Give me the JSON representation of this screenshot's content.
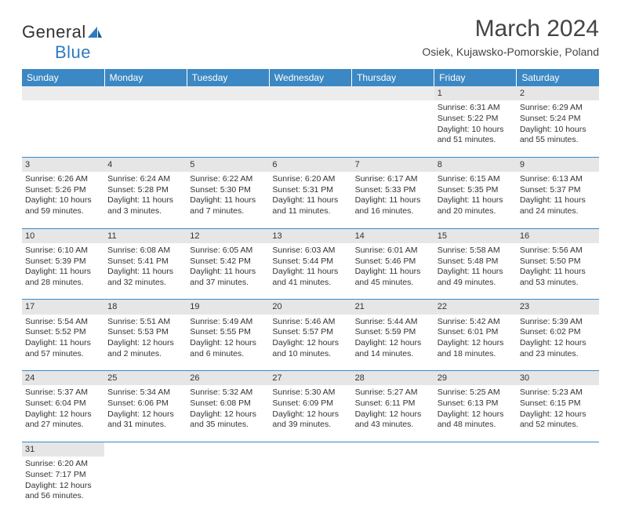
{
  "brand": {
    "part1": "General",
    "part2": "Blue"
  },
  "title": "March 2024",
  "location": "Osiek, Kujawsko-Pomorskie, Poland",
  "colors": {
    "headerBg": "#3b88c4",
    "dayShade": "#e6e6e6",
    "border": "#3b88c4"
  },
  "weekdays": [
    "Sunday",
    "Monday",
    "Tuesday",
    "Wednesday",
    "Thursday",
    "Friday",
    "Saturday"
  ],
  "weeks": [
    [
      null,
      null,
      null,
      null,
      null,
      {
        "n": "1",
        "sr": "Sunrise: 6:31 AM",
        "ss": "Sunset: 5:22 PM",
        "d1": "Daylight: 10 hours",
        "d2": "and 51 minutes."
      },
      {
        "n": "2",
        "sr": "Sunrise: 6:29 AM",
        "ss": "Sunset: 5:24 PM",
        "d1": "Daylight: 10 hours",
        "d2": "and 55 minutes."
      }
    ],
    [
      {
        "n": "3",
        "sr": "Sunrise: 6:26 AM",
        "ss": "Sunset: 5:26 PM",
        "d1": "Daylight: 10 hours",
        "d2": "and 59 minutes."
      },
      {
        "n": "4",
        "sr": "Sunrise: 6:24 AM",
        "ss": "Sunset: 5:28 PM",
        "d1": "Daylight: 11 hours",
        "d2": "and 3 minutes."
      },
      {
        "n": "5",
        "sr": "Sunrise: 6:22 AM",
        "ss": "Sunset: 5:30 PM",
        "d1": "Daylight: 11 hours",
        "d2": "and 7 minutes."
      },
      {
        "n": "6",
        "sr": "Sunrise: 6:20 AM",
        "ss": "Sunset: 5:31 PM",
        "d1": "Daylight: 11 hours",
        "d2": "and 11 minutes."
      },
      {
        "n": "7",
        "sr": "Sunrise: 6:17 AM",
        "ss": "Sunset: 5:33 PM",
        "d1": "Daylight: 11 hours",
        "d2": "and 16 minutes."
      },
      {
        "n": "8",
        "sr": "Sunrise: 6:15 AM",
        "ss": "Sunset: 5:35 PM",
        "d1": "Daylight: 11 hours",
        "d2": "and 20 minutes."
      },
      {
        "n": "9",
        "sr": "Sunrise: 6:13 AM",
        "ss": "Sunset: 5:37 PM",
        "d1": "Daylight: 11 hours",
        "d2": "and 24 minutes."
      }
    ],
    [
      {
        "n": "10",
        "sr": "Sunrise: 6:10 AM",
        "ss": "Sunset: 5:39 PM",
        "d1": "Daylight: 11 hours",
        "d2": "and 28 minutes."
      },
      {
        "n": "11",
        "sr": "Sunrise: 6:08 AM",
        "ss": "Sunset: 5:41 PM",
        "d1": "Daylight: 11 hours",
        "d2": "and 32 minutes."
      },
      {
        "n": "12",
        "sr": "Sunrise: 6:05 AM",
        "ss": "Sunset: 5:42 PM",
        "d1": "Daylight: 11 hours",
        "d2": "and 37 minutes."
      },
      {
        "n": "13",
        "sr": "Sunrise: 6:03 AM",
        "ss": "Sunset: 5:44 PM",
        "d1": "Daylight: 11 hours",
        "d2": "and 41 minutes."
      },
      {
        "n": "14",
        "sr": "Sunrise: 6:01 AM",
        "ss": "Sunset: 5:46 PM",
        "d1": "Daylight: 11 hours",
        "d2": "and 45 minutes."
      },
      {
        "n": "15",
        "sr": "Sunrise: 5:58 AM",
        "ss": "Sunset: 5:48 PM",
        "d1": "Daylight: 11 hours",
        "d2": "and 49 minutes."
      },
      {
        "n": "16",
        "sr": "Sunrise: 5:56 AM",
        "ss": "Sunset: 5:50 PM",
        "d1": "Daylight: 11 hours",
        "d2": "and 53 minutes."
      }
    ],
    [
      {
        "n": "17",
        "sr": "Sunrise: 5:54 AM",
        "ss": "Sunset: 5:52 PM",
        "d1": "Daylight: 11 hours",
        "d2": "and 57 minutes."
      },
      {
        "n": "18",
        "sr": "Sunrise: 5:51 AM",
        "ss": "Sunset: 5:53 PM",
        "d1": "Daylight: 12 hours",
        "d2": "and 2 minutes."
      },
      {
        "n": "19",
        "sr": "Sunrise: 5:49 AM",
        "ss": "Sunset: 5:55 PM",
        "d1": "Daylight: 12 hours",
        "d2": "and 6 minutes."
      },
      {
        "n": "20",
        "sr": "Sunrise: 5:46 AM",
        "ss": "Sunset: 5:57 PM",
        "d1": "Daylight: 12 hours",
        "d2": "and 10 minutes."
      },
      {
        "n": "21",
        "sr": "Sunrise: 5:44 AM",
        "ss": "Sunset: 5:59 PM",
        "d1": "Daylight: 12 hours",
        "d2": "and 14 minutes."
      },
      {
        "n": "22",
        "sr": "Sunrise: 5:42 AM",
        "ss": "Sunset: 6:01 PM",
        "d1": "Daylight: 12 hours",
        "d2": "and 18 minutes."
      },
      {
        "n": "23",
        "sr": "Sunrise: 5:39 AM",
        "ss": "Sunset: 6:02 PM",
        "d1": "Daylight: 12 hours",
        "d2": "and 23 minutes."
      }
    ],
    [
      {
        "n": "24",
        "sr": "Sunrise: 5:37 AM",
        "ss": "Sunset: 6:04 PM",
        "d1": "Daylight: 12 hours",
        "d2": "and 27 minutes."
      },
      {
        "n": "25",
        "sr": "Sunrise: 5:34 AM",
        "ss": "Sunset: 6:06 PM",
        "d1": "Daylight: 12 hours",
        "d2": "and 31 minutes."
      },
      {
        "n": "26",
        "sr": "Sunrise: 5:32 AM",
        "ss": "Sunset: 6:08 PM",
        "d1": "Daylight: 12 hours",
        "d2": "and 35 minutes."
      },
      {
        "n": "27",
        "sr": "Sunrise: 5:30 AM",
        "ss": "Sunset: 6:09 PM",
        "d1": "Daylight: 12 hours",
        "d2": "and 39 minutes."
      },
      {
        "n": "28",
        "sr": "Sunrise: 5:27 AM",
        "ss": "Sunset: 6:11 PM",
        "d1": "Daylight: 12 hours",
        "d2": "and 43 minutes."
      },
      {
        "n": "29",
        "sr": "Sunrise: 5:25 AM",
        "ss": "Sunset: 6:13 PM",
        "d1": "Daylight: 12 hours",
        "d2": "and 48 minutes."
      },
      {
        "n": "30",
        "sr": "Sunrise: 5:23 AM",
        "ss": "Sunset: 6:15 PM",
        "d1": "Daylight: 12 hours",
        "d2": "and 52 minutes."
      }
    ],
    [
      {
        "n": "31",
        "sr": "Sunrise: 6:20 AM",
        "ss": "Sunset: 7:17 PM",
        "d1": "Daylight: 12 hours",
        "d2": "and 56 minutes."
      },
      null,
      null,
      null,
      null,
      null,
      null
    ]
  ]
}
